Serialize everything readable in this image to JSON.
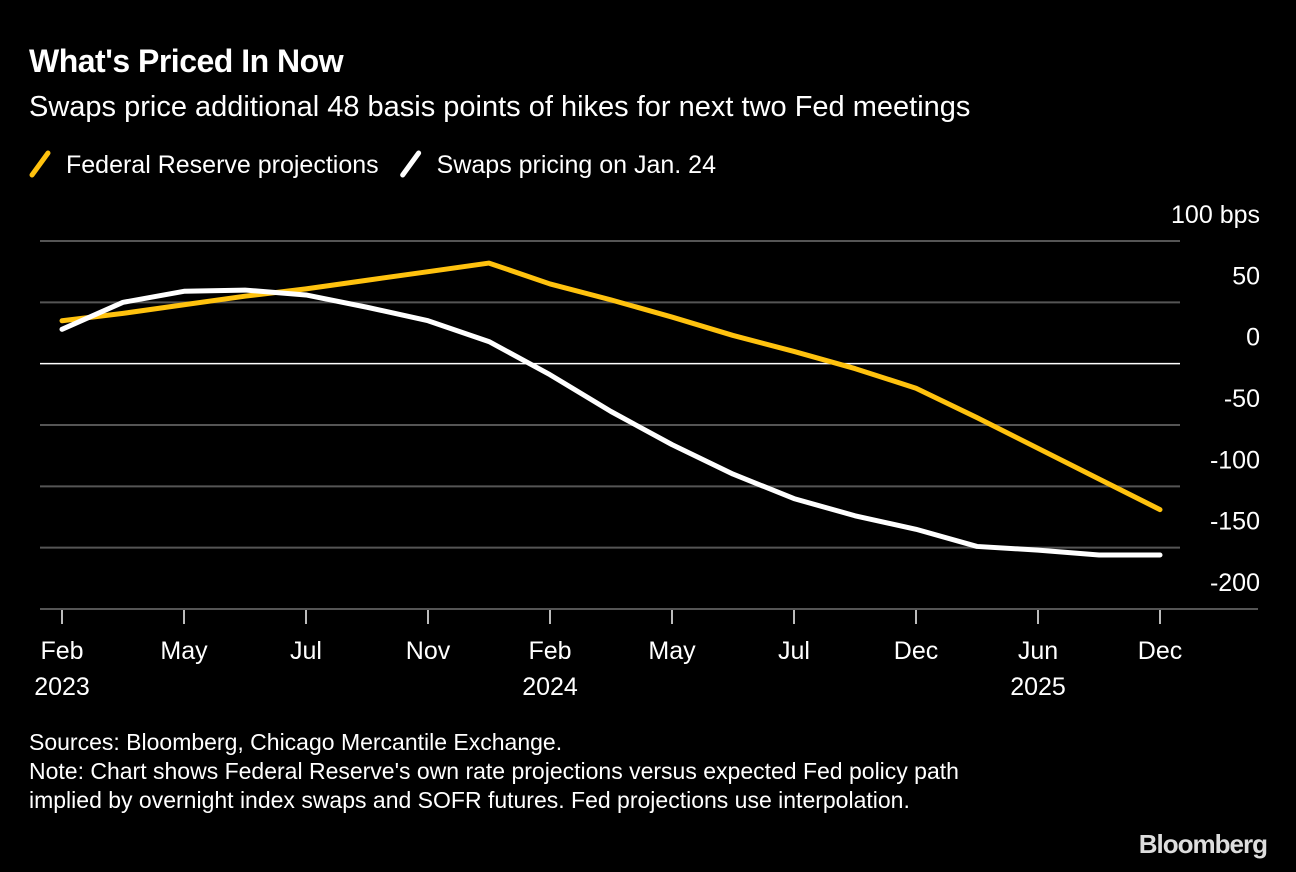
{
  "chart_data": {
    "type": "line",
    "title": "What's Priced In Now",
    "subtitle": "Swaps price additional 48 basis points of hikes for next two Fed meetings",
    "categories": [
      "Feb",
      null,
      "May",
      null,
      "Jul",
      null,
      "Nov",
      null,
      "Feb",
      null,
      "May",
      null,
      "Jul",
      null,
      "Dec",
      null,
      "Jun",
      null,
      "Dec"
    ],
    "category_years": [
      "2023",
      null,
      null,
      null,
      null,
      null,
      null,
      null,
      "2024",
      null,
      null,
      null,
      null,
      null,
      null,
      null,
      "2025",
      null,
      null
    ],
    "series": [
      {
        "name": "Federal Reserve projections",
        "color": "#ffc20e",
        "values": [
          35,
          41,
          48,
          55,
          61,
          68,
          75,
          82,
          65,
          52,
          38,
          23,
          10,
          -4,
          -20,
          -44,
          -69,
          -94,
          -119
        ]
      },
      {
        "name": "Swaps pricing on Jan. 24",
        "color": "#ffffff",
        "values": [
          28,
          50,
          59,
          60,
          56,
          46,
          35,
          18,
          -9,
          -39,
          -66,
          -90,
          -110,
          -124,
          -135,
          -149,
          -152,
          -156,
          -156
        ]
      }
    ],
    "ylim": [
      -200,
      100
    ],
    "yticks": [
      {
        "value": 100,
        "label": "100 bps"
      },
      50,
      0,
      -50,
      -100,
      -150,
      -200
    ],
    "grid": true,
    "sources": "Sources: Bloomberg, Chicago Mercantile Exchange.",
    "note": "Note: Chart shows Federal Reserve's own rate projections versus expected Fed policy path implied by overnight index swaps and SOFR futures. Fed projections use interpolation.",
    "brand": "Bloomberg"
  }
}
